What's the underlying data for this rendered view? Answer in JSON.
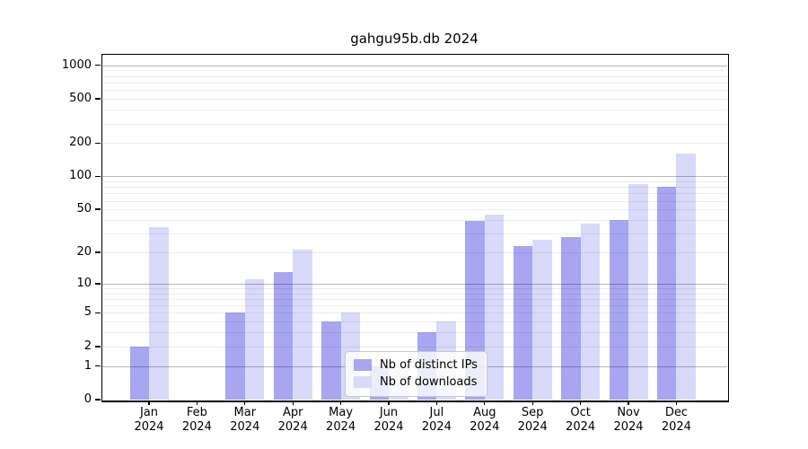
{
  "chart_data": {
    "type": "bar",
    "title": "gahgu95b.db 2024",
    "categories": [
      "Jan",
      "Feb",
      "Mar",
      "Apr",
      "May",
      "Jun",
      "Jul",
      "Aug",
      "Sep",
      "Oct",
      "Nov",
      "Dec"
    ],
    "x_tick_year": "2024",
    "series": [
      {
        "name": "Nb of distinct IPs",
        "color": "#a6a6f1",
        "values": [
          2,
          0,
          5,
          13,
          4,
          1,
          3,
          39,
          23,
          28,
          40,
          80
        ]
      },
      {
        "name": "Nb of downloads",
        "color": "#d9d9fa",
        "values": [
          34,
          0,
          11,
          21,
          5,
          1,
          4,
          45,
          26,
          37,
          85,
          160
        ]
      }
    ],
    "y_ticks": [
      0,
      1,
      2,
      5,
      10,
      20,
      50,
      100,
      200,
      500,
      1000
    ],
    "y_scale": "log10(1+x)",
    "ylim": [
      0,
      1280
    ],
    "grid": true,
    "grid_major_color": "#b5b5b5",
    "grid_minor_color": "#e8e8e8",
    "legend_position": "inside bottom-center",
    "xlabel": "",
    "ylabel": ""
  }
}
